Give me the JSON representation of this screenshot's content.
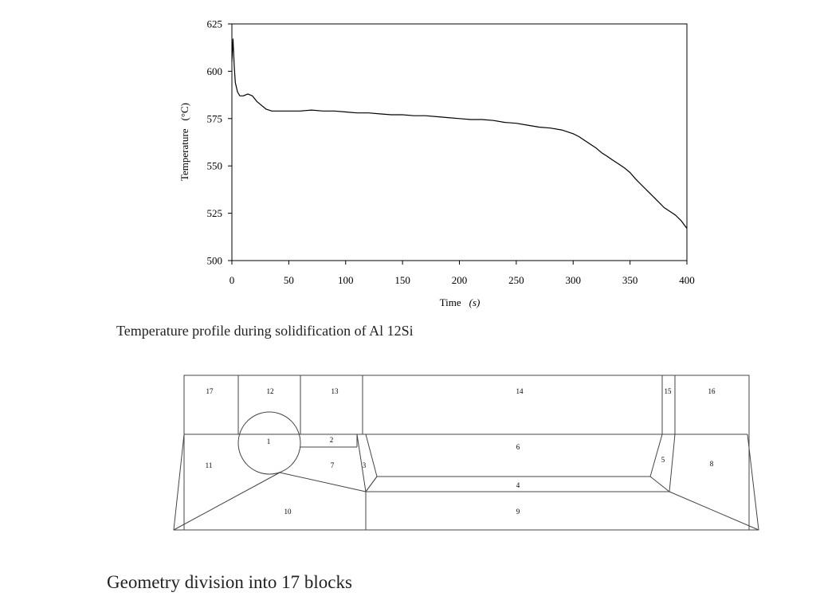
{
  "chart_data": {
    "type": "line",
    "title": "",
    "xlabel": "Time",
    "xlabel_unit": "(s)",
    "ylabel": "Temperature",
    "ylabel_unit": "(°C)",
    "xlim": [
      0,
      400
    ],
    "ylim": [
      500,
      625
    ],
    "x_ticks": [
      "0",
      "50",
      "100",
      "150",
      "200",
      "250",
      "300",
      "350",
      "400"
    ],
    "y_ticks": [
      "500",
      "525",
      "550",
      "575",
      "600",
      "625"
    ],
    "grid": false,
    "legend": "none",
    "series": [
      {
        "color": "#000000",
        "x": [
          0,
          1,
          2,
          3,
          5,
          7,
          10,
          14,
          18,
          22,
          26,
          30,
          35,
          40,
          50,
          60,
          70,
          80,
          90,
          100,
          110,
          120,
          130,
          140,
          150,
          160,
          170,
          180,
          190,
          200,
          210,
          220,
          230,
          240,
          250,
          260,
          270,
          280,
          290,
          300,
          305,
          310,
          315,
          320,
          325,
          330,
          335,
          340,
          345,
          350,
          355,
          360,
          365,
          370,
          375,
          380,
          385,
          390,
          395,
          400
        ],
        "y": [
          605,
          617,
          603,
          594,
          589,
          587,
          587,
          588,
          587,
          584,
          582,
          580,
          579,
          579,
          579,
          579,
          579.5,
          579,
          579,
          578.5,
          578,
          578,
          577.5,
          577,
          577,
          576.5,
          576.5,
          576,
          575.5,
          575,
          574.5,
          574.5,
          574,
          573,
          572.5,
          571.5,
          570.5,
          570,
          569,
          567,
          565.5,
          563.5,
          561.5,
          559.5,
          557,
          555,
          553,
          551,
          549,
          546.5,
          543,
          540,
          537,
          534,
          531,
          528,
          526,
          524,
          521,
          517
        ]
      }
    ]
  },
  "captions": {
    "chart": "Temperature profile during solidification of Al 12Si",
    "geometry": "Geometry division into 17 blocks"
  },
  "geometry": {
    "block_labels": [
      "1",
      "2",
      "3",
      "4",
      "5",
      "6",
      "7",
      "8",
      "9",
      "10",
      "11",
      "12",
      "13",
      "14",
      "15",
      "16",
      "17"
    ]
  }
}
